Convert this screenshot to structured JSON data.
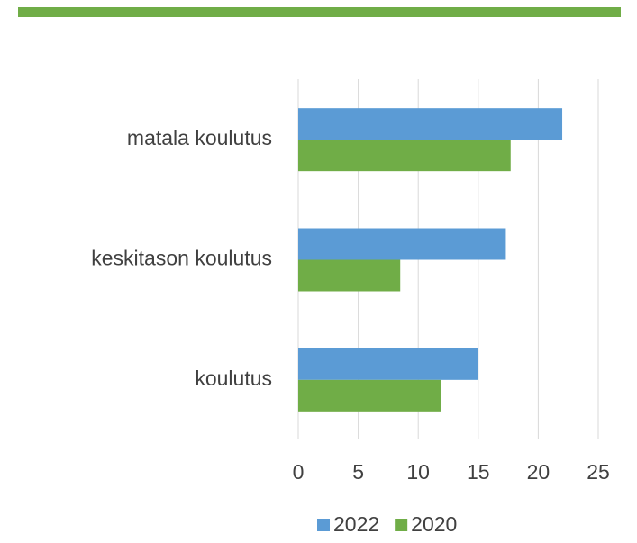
{
  "chart_data": {
    "type": "bar",
    "orientation": "horizontal",
    "categories": [
      "matala koulutus",
      "keskitason koulutus",
      "koulutus"
    ],
    "series": [
      {
        "name": "2022",
        "color": "#5b9bd5",
        "values": [
          22,
          17.3,
          15
        ]
      },
      {
        "name": "2020",
        "color": "#70ad47",
        "values": [
          17.7,
          8.5,
          11.9
        ]
      }
    ],
    "xlim": [
      0,
      25
    ],
    "xticks": [
      0,
      5,
      10,
      15,
      20,
      25
    ],
    "grid": true,
    "legend": "bottom"
  }
}
